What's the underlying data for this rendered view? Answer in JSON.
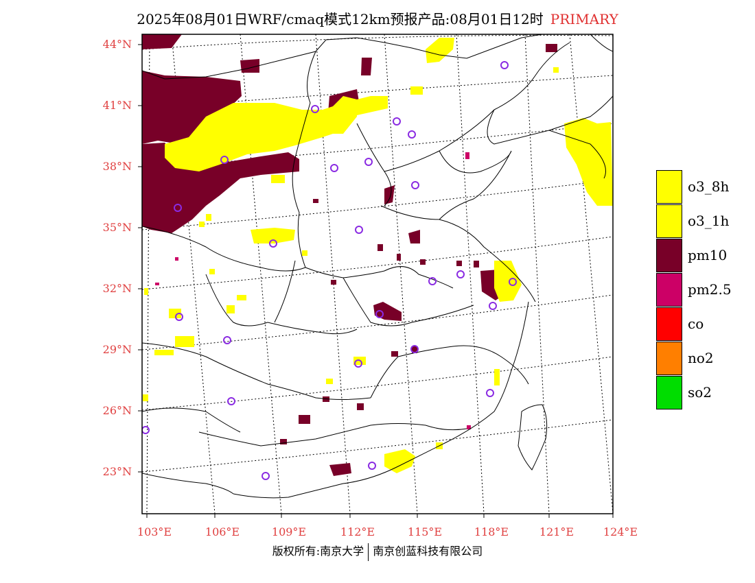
{
  "title": {
    "main": "2025年08月01日WRF/cmaq模式12km预报产品:08月01日12时",
    "tag": "PRIMARY"
  },
  "map": {
    "latitudes": [
      "44°N",
      "41°N",
      "38°N",
      "35°N",
      "32°N",
      "29°N",
      "26°N",
      "23°N"
    ],
    "longitudes": [
      "103°E",
      "106°E",
      "109°E",
      "112°E",
      "115°E",
      "118°E",
      "121°E",
      "124°E"
    ],
    "pollutant_colors": {
      "o3": "#ffff00",
      "pm10": "#780028",
      "pm25": "#cc0066",
      "station_marker": "#8a2be2"
    }
  },
  "legend": [
    {
      "label": "o3_8h",
      "color": "#ffff00"
    },
    {
      "label": "o3_1h",
      "color": "#ffff00"
    },
    {
      "label": "pm10",
      "color": "#780028"
    },
    {
      "label": "pm2.5",
      "color": "#cc0066"
    },
    {
      "label": "co",
      "color": "#ff0000"
    },
    {
      "label": "no2",
      "color": "#ff7f00"
    },
    {
      "label": "so2",
      "color": "#00dd00"
    }
  ],
  "footer": {
    "left": "版权所有:南京大学",
    "right": "南京创蓝科技有限公司"
  }
}
